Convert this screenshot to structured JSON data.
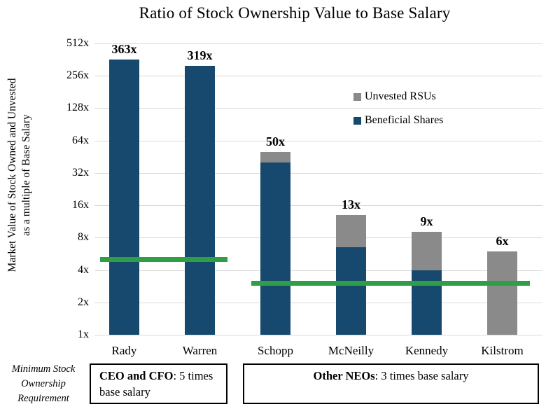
{
  "title": "Ratio of Stock Ownership Value to Base Salary",
  "y_axis_title": {
    "line1": "Market Value of Stock Owned and Unvested",
    "line2": "as a multiple of Base Salary"
  },
  "chart_data": {
    "type": "bar",
    "subtype": "stacked",
    "y_scale": "log2",
    "ylim": [
      1,
      512
    ],
    "grid": "horizontal",
    "categories": [
      "Rady",
      "Warren",
      "Schopp",
      "McNeilly",
      "Kennedy",
      "Kilstrom"
    ],
    "series": [
      {
        "name": "Beneficial Shares",
        "color": "#17496e",
        "values": [
          363,
          319,
          40,
          6.5,
          4,
          0
        ]
      },
      {
        "name": "Unvested RSUs",
        "color": "#8a8a8a",
        "values": [
          0,
          0,
          10,
          6.5,
          5,
          6
        ]
      }
    ],
    "total_labels": [
      "363x",
      "319x",
      "50x",
      "13x",
      "9x",
      "6x"
    ],
    "y_ticks": [
      {
        "value": 512,
        "label": "512x"
      },
      {
        "value": 256,
        "label": "256x"
      },
      {
        "value": 128,
        "label": "128x"
      },
      {
        "value": 64,
        "label": "64x"
      },
      {
        "value": 32,
        "label": "32x"
      },
      {
        "value": 16,
        "label": "16x"
      },
      {
        "value": 8,
        "label": "8x"
      },
      {
        "value": 4,
        "label": "4x"
      },
      {
        "value": 2,
        "label": "2x"
      },
      {
        "value": 1,
        "label": "1x"
      }
    ],
    "guidelines": [
      {
        "value": 5,
        "from": "Rady",
        "to": "Warren",
        "color": "#2f9e45",
        "meaning": "CEO and CFO minimum: 5 times base salary"
      },
      {
        "value": 3,
        "from": "Schopp",
        "to": "Kilstrom",
        "color": "#2f9e45",
        "meaning": "Other NEOs minimum: 3 times base salary"
      }
    ],
    "legend": [
      {
        "label": "Unvested RSUs",
        "color": "#8a8a8a"
      },
      {
        "label": "Beneficial Shares",
        "color": "#17496e"
      }
    ],
    "legend_position": "upper-right-inside"
  },
  "footer": {
    "requirement_label": {
      "line1": "Minimum Stock",
      "line2": "Ownership",
      "line3": "Requirement"
    },
    "box1": {
      "bold": "CEO and CFO",
      "rest": ": 5 times base salary"
    },
    "box2": {
      "bold": "Other NEOs",
      "rest": ": 3 times base salary"
    }
  }
}
